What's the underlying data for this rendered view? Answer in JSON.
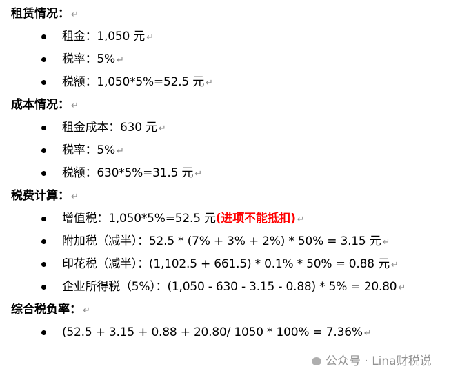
{
  "sections": [
    {
      "heading": "租赁情况：",
      "items": [
        {
          "text": "租金：1,050 元"
        },
        {
          "text": "税率：5%"
        },
        {
          "text": "税额：1,050*5%=52.5 元"
        }
      ]
    },
    {
      "heading": "成本情况：",
      "items": [
        {
          "text": "租金成本：630 元"
        },
        {
          "text": "税率：5%"
        },
        {
          "text": "税额：630*5%=31.5 元"
        }
      ]
    },
    {
      "heading": "税费计算：",
      "items": [
        {
          "text": "增值税：1,050*5%=52.5 元",
          "note": "(进项不能抵扣)"
        },
        {
          "text": "附加税（减半）：52.5 * (7% + 3% + 2%) * 50% = 3.15 元"
        },
        {
          "text": "印花税（减半）：(1,102.5 + 661.5) * 0.1% * 50% = 0.88 元"
        },
        {
          "text": "企业所得税（5%）：(1,050 - 630 - 3.15 - 0.88) * 5% = 20.80"
        }
      ]
    },
    {
      "heading": "综合税负率：",
      "items": [
        {
          "text": "(52.5 + 3.15 + 0.88 + 20.80/ 1050 * 100% = 7.36%"
        }
      ]
    }
  ],
  "paragraph_mark": "↵",
  "watermark": "公众号 · Lina财税说",
  "colors": {
    "note": "#ff0000"
  }
}
